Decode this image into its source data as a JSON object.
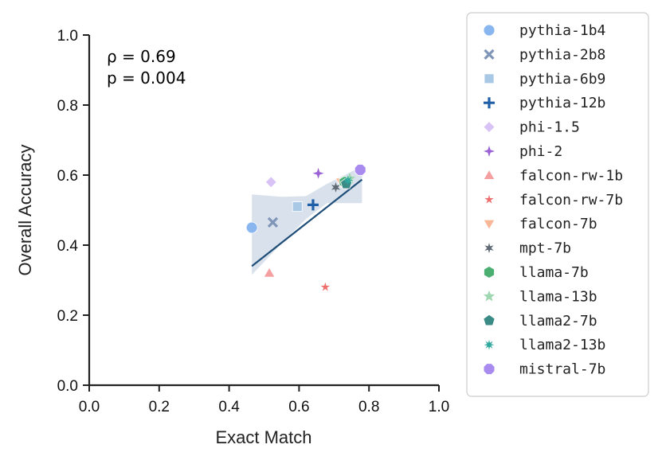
{
  "chart_data": {
    "type": "scatter",
    "xlabel": "Exact Match",
    "ylabel": "Overall Accuracy",
    "xlim": [
      0.0,
      1.0
    ],
    "ylim": [
      0.0,
      1.0
    ],
    "xticks": [
      "0.0",
      "0.2",
      "0.4",
      "0.6",
      "0.8",
      "1.0"
    ],
    "yticks": [
      "0.0",
      "0.2",
      "0.4",
      "0.6",
      "0.8",
      "1.0"
    ],
    "grid": false,
    "legend_position": "outside-right",
    "annotations": {
      "rho": "ρ = 0.69",
      "p": "p = 0.004"
    },
    "regression": {
      "x_range": [
        0.465,
        0.78
      ],
      "intercept": -0.025,
      "slope": 0.785,
      "line_color": "#1f4e79",
      "band_color": "#c5d3e2",
      "band": [
        {
          "x": 0.465,
          "lo": 0.315,
          "hi": 0.545
        },
        {
          "x": 0.55,
          "lo": 0.405,
          "hi": 0.538
        },
        {
          "x": 0.62,
          "lo": 0.475,
          "hi": 0.54
        },
        {
          "x": 0.68,
          "lo": 0.52,
          "hi": 0.575
        },
        {
          "x": 0.78,
          "lo": 0.52,
          "hi": 0.625
        }
      ]
    },
    "series": [
      {
        "name": "pythia-1b4",
        "marker": "circle",
        "color": "#8ab6f0",
        "x": 0.465,
        "y": 0.45
      },
      {
        "name": "pythia-2b8",
        "marker": "x",
        "color": "#8096b8",
        "x": 0.525,
        "y": 0.465
      },
      {
        "name": "pythia-6b9",
        "marker": "square",
        "color": "#a8c8e6",
        "x": 0.595,
        "y": 0.51
      },
      {
        "name": "pythia-12b",
        "marker": "plus",
        "color": "#1f5fa8",
        "x": 0.64,
        "y": 0.515
      },
      {
        "name": "phi-1.5",
        "marker": "diamond",
        "color": "#d9c2f5",
        "x": 0.52,
        "y": 0.58
      },
      {
        "name": "phi-2",
        "marker": "star4",
        "color": "#9a62d4",
        "x": 0.655,
        "y": 0.605
      },
      {
        "name": "falcon-rw-1b",
        "marker": "triangle-up",
        "color": "#f4a0a0",
        "x": 0.515,
        "y": 0.32
      },
      {
        "name": "falcon-rw-7b",
        "marker": "star5-small",
        "color": "#ee6e6e",
        "x": 0.675,
        "y": 0.28
      },
      {
        "name": "falcon-7b",
        "marker": "triangle-down",
        "color": "#f8b898",
        "x": 0.72,
        "y": 0.58
      },
      {
        "name": "mpt-7b",
        "marker": "star6",
        "color": "#5f6a75",
        "x": 0.705,
        "y": 0.565
      },
      {
        "name": "llama-7b",
        "marker": "hexagon",
        "color": "#4caf72",
        "x": 0.73,
        "y": 0.58
      },
      {
        "name": "llama-13b",
        "marker": "star5",
        "color": "#9fd8b0",
        "x": 0.745,
        "y": 0.59
      },
      {
        "name": "llama2-7b",
        "marker": "pentagon",
        "color": "#3a8a86",
        "x": 0.735,
        "y": 0.575
      },
      {
        "name": "llama2-13b",
        "marker": "star8",
        "color": "#2fa8a0",
        "x": 0.74,
        "y": 0.585
      },
      {
        "name": "mistral-7b",
        "marker": "octagon",
        "color": "#a98bf0",
        "x": 0.775,
        "y": 0.615
      }
    ]
  }
}
